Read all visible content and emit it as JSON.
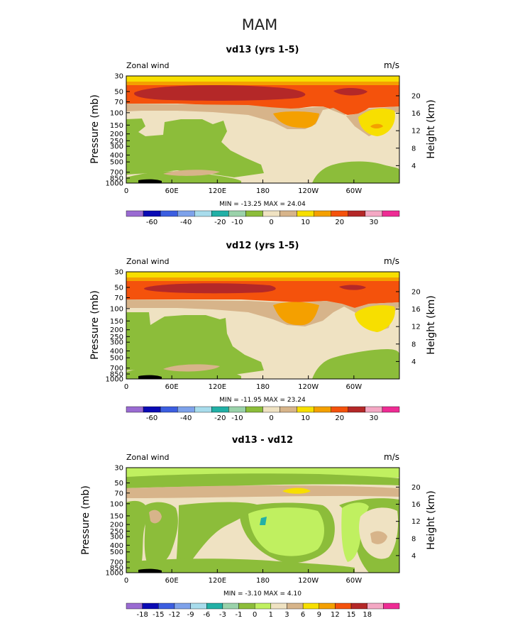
{
  "page": {
    "title": "MAM"
  },
  "chart_data": [
    {
      "type": "heatmap",
      "title": "vd13 (yrs 1-5)",
      "field_label": "Zonal wind",
      "units": "m/s",
      "ylabel": "Pressure (mb)",
      "ylabel_right": "Height (km)",
      "x_ticks": [
        "0",
        "60E",
        "120E",
        "180",
        "120W",
        "60W"
      ],
      "y_ticks": [
        "30",
        "50",
        "70",
        "100",
        "150",
        "200",
        "250",
        "300",
        "400",
        "500",
        "700",
        "850",
        "1000"
      ],
      "y_ticks_right": [
        "20",
        "16",
        "12",
        "8",
        "4"
      ],
      "stats": "MIN = -13.25   MAX =  24.04",
      "min": -13.25,
      "max": 24.04,
      "levels": [
        "-60",
        "-40",
        "-20",
        "-10",
        "0",
        "10",
        "20",
        "30"
      ],
      "colors": [
        "#9a6bd2",
        "#0a0ab4",
        "#3c5ee0",
        "#7ea2ea",
        "#a8dcec",
        "#22b0a6",
        "#9ad2aa",
        "#8cbd3a",
        "#efe2c2",
        "#d7b48a",
        "#f7df00",
        "#f4a000",
        "#f4520c",
        "#b42828",
        "#f4a8c4",
        "#ee2c94"
      ],
      "tick_positions": [
        2,
        4,
        6,
        7,
        8,
        9,
        10,
        11,
        12,
        13
      ]
    },
    {
      "type": "heatmap",
      "title": "vd12 (yrs 1-5)",
      "field_label": "Zonal wind",
      "units": "m/s",
      "ylabel": "Pressure (mb)",
      "ylabel_right": "Height (km)",
      "x_ticks": [
        "0",
        "60E",
        "120E",
        "180",
        "120W",
        "60W"
      ],
      "y_ticks": [
        "30",
        "50",
        "70",
        "100",
        "150",
        "200",
        "250",
        "300",
        "400",
        "500",
        "700",
        "850",
        "1000"
      ],
      "y_ticks_right": [
        "20",
        "16",
        "12",
        "8",
        "4"
      ],
      "stats": "MIN = -11.95   MAX =  23.24",
      "min": -11.95,
      "max": 23.24,
      "levels": [
        "-60",
        "-40",
        "-20",
        "-10",
        "0",
        "10",
        "20",
        "30"
      ],
      "colors": [
        "#9a6bd2",
        "#0a0ab4",
        "#3c5ee0",
        "#7ea2ea",
        "#a8dcec",
        "#22b0a6",
        "#9ad2aa",
        "#8cbd3a",
        "#efe2c2",
        "#d7b48a",
        "#f7df00",
        "#f4a000",
        "#f4520c",
        "#b42828",
        "#f4a8c4",
        "#ee2c94"
      ]
    },
    {
      "type": "heatmap",
      "title": "vd13 - vd12",
      "field_label": "Zonal wind",
      "units": "m/s",
      "ylabel": "Pressure (mb)",
      "ylabel_right": "Height (km)",
      "x_ticks": [
        "0",
        "60E",
        "120E",
        "180",
        "120W",
        "60W"
      ],
      "y_ticks": [
        "30",
        "50",
        "70",
        "100",
        "150",
        "200",
        "250",
        "300",
        "400",
        "500",
        "700",
        "850",
        "1000"
      ],
      "y_ticks_right": [
        "20",
        "16",
        "12",
        "8",
        "4"
      ],
      "stats": "MIN = -3.10   MAX =  4.10",
      "min": -3.1,
      "max": 4.1,
      "levels": [
        "-18",
        "-15",
        "-12",
        "-9",
        "-6",
        "-3",
        "-1",
        "0",
        "1",
        "3",
        "6",
        "9",
        "12",
        "15",
        "18"
      ],
      "colors": [
        "#9a6bd2",
        "#0a0ab4",
        "#3c5ee0",
        "#7ea2ea",
        "#a8dcec",
        "#22b0a6",
        "#9ad2aa",
        "#8cbd3a",
        "#c0f060",
        "#efe2c2",
        "#d7b48a",
        "#f7df00",
        "#f4a000",
        "#f4520c",
        "#b42828",
        "#f4a8c4",
        "#ee2c94"
      ]
    }
  ]
}
